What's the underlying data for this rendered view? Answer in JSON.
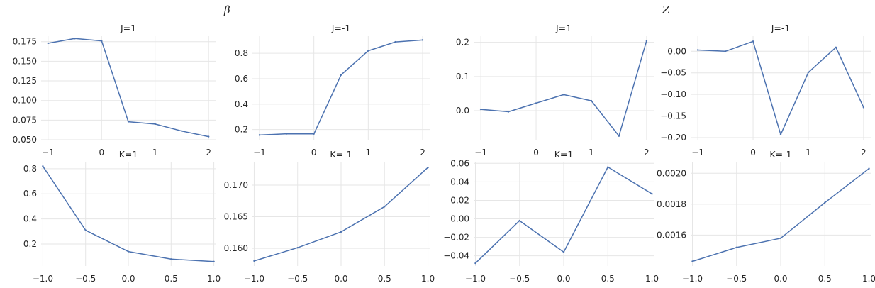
{
  "group_titles": {
    "left": "β",
    "right": "Z"
  },
  "chart_data": [
    {
      "type": "line",
      "title": "J=1",
      "xlabel": "",
      "ylabel": "",
      "x": [
        -1,
        -0.5,
        0,
        0.5,
        1,
        1.5,
        2
      ],
      "y": [
        0.173,
        0.179,
        0.176,
        0.073,
        0.07,
        0.061,
        0.054
      ],
      "xlim": [
        -1.13,
        2.13
      ],
      "ylim": [
        0.05,
        0.182
      ],
      "xticks": [
        -1,
        0,
        1,
        2
      ],
      "xtick_labels": [
        "−1",
        "0",
        "1",
        "2"
      ],
      "yticks": [
        0.05,
        0.075,
        0.1,
        0.125,
        0.15,
        0.175
      ],
      "ytick_labels": [
        "0.050",
        "0.075",
        "0.100",
        "0.125",
        "0.150",
        "0.175"
      ],
      "grid": true
    },
    {
      "type": "line",
      "title": "J=-1",
      "xlabel": "",
      "ylabel": "",
      "x": [
        -1,
        -0.5,
        0,
        0.5,
        1,
        1.5,
        2
      ],
      "y": [
        0.157,
        0.167,
        0.166,
        0.63,
        0.82,
        0.89,
        0.905
      ],
      "xlim": [
        -1.13,
        2.13
      ],
      "ylim": [
        0.12,
        0.935
      ],
      "xticks": [
        -1,
        0,
        1,
        2
      ],
      "xtick_labels": [
        "−1",
        "0",
        "1",
        "2"
      ],
      "yticks": [
        0.2,
        0.4,
        0.6,
        0.8
      ],
      "ytick_labels": [
        "0.2",
        "0.4",
        "0.6",
        "0.8"
      ],
      "grid": true
    },
    {
      "type": "line",
      "title": "J=1",
      "xlabel": "",
      "ylabel": "",
      "x": [
        -1,
        -0.5,
        0,
        0.5,
        1,
        1.5,
        2
      ],
      "y": [
        0.004,
        -0.003,
        0.022,
        0.047,
        0.029,
        -0.074,
        0.205
      ],
      "xlim": [
        -1.13,
        2.13
      ],
      "ylim": [
        -0.085,
        0.218
      ],
      "xticks": [
        -1,
        0,
        1,
        2
      ],
      "xtick_labels": [
        "−1",
        "0",
        "1",
        "2"
      ],
      "yticks": [
        0.0,
        0.1,
        0.2
      ],
      "ytick_labels": [
        "0.0",
        "0.1",
        "0.2"
      ],
      "grid": true
    },
    {
      "type": "line",
      "title": "J=-1",
      "xlabel": "",
      "ylabel": "",
      "x": [
        -1,
        -0.5,
        0,
        0.5,
        1,
        1.5,
        2
      ],
      "y": [
        0.003,
        0.0,
        0.023,
        -0.193,
        -0.049,
        0.009,
        -0.13
      ],
      "xlim": [
        -1.13,
        2.13
      ],
      "ylim": [
        -0.205,
        0.035
      ],
      "xticks": [
        -1,
        0,
        1,
        2
      ],
      "xtick_labels": [
        "−1",
        "0",
        "1",
        "2"
      ],
      "yticks": [
        -0.2,
        -0.15,
        -0.1,
        -0.05,
        0.0
      ],
      "ytick_labels": [
        "−0.20",
        "−0.15",
        "−0.10",
        "−0.05",
        "0.00"
      ],
      "grid": true
    },
    {
      "type": "line",
      "title": "K=1",
      "xlabel": "",
      "ylabel": "",
      "x": [
        -1,
        -0.5,
        0,
        0.5,
        1
      ],
      "y": [
        0.82,
        0.31,
        0.14,
        0.08,
        0.06
      ],
      "xlim": [
        -1.02,
        1.02
      ],
      "ylim": [
        0.025,
        0.85
      ],
      "xticks": [
        -1,
        -0.5,
        0,
        0.5,
        1
      ],
      "xtick_labels": [
        "−1.0",
        "−0.5",
        "0.0",
        "0.5",
        "1.0"
      ],
      "yticks": [
        0.2,
        0.4,
        0.6,
        0.8
      ],
      "ytick_labels": [
        "0.2",
        "0.4",
        "0.6",
        "0.8"
      ],
      "grid": true
    },
    {
      "type": "line",
      "title": "K=-1",
      "xlabel": "",
      "ylabel": "",
      "x": [
        -1,
        -0.5,
        0,
        0.5,
        1
      ],
      "y": [
        0.158,
        0.1601,
        0.1626,
        0.1666,
        0.1728
      ],
      "xlim": [
        -1.02,
        1.02
      ],
      "ylim": [
        0.1572,
        0.1736
      ],
      "xticks": [
        -1,
        -0.5,
        0,
        0.5,
        1
      ],
      "xtick_labels": [
        "−1.0",
        "−0.5",
        "0.0",
        "0.5",
        "1.0"
      ],
      "yticks": [
        0.16,
        0.165,
        0.17
      ],
      "ytick_labels": [
        "0.160",
        "0.165",
        "0.170"
      ],
      "grid": true
    },
    {
      "type": "line",
      "title": "K=1",
      "xlabel": "",
      "ylabel": "",
      "x": [
        -1,
        -0.5,
        0,
        0.5,
        1
      ],
      "y": [
        -0.048,
        -0.002,
        -0.036,
        0.056,
        0.027
      ],
      "xlim": [
        -1.02,
        1.02
      ],
      "ylim": [
        -0.051,
        0.061
      ],
      "xticks": [
        -1,
        -0.5,
        0,
        0.5,
        1
      ],
      "xtick_labels": [
        "−1.0",
        "−0.5",
        "0.0",
        "0.5",
        "1.0"
      ],
      "yticks": [
        -0.04,
        -0.02,
        0.0,
        0.02,
        0.04,
        0.06
      ],
      "ytick_labels": [
        "−0.04",
        "−0.02",
        "0.00",
        "0.02",
        "0.04",
        "0.06"
      ],
      "grid": true
    },
    {
      "type": "line",
      "title": "K=-1",
      "xlabel": "",
      "ylabel": "",
      "x": [
        -1,
        -0.5,
        0,
        0.5,
        1
      ],
      "y": [
        0.00143,
        0.00152,
        0.00158,
        0.00181,
        0.00203
      ],
      "xlim": [
        -1.02,
        1.02
      ],
      "ylim": [
        0.0014,
        0.00207
      ],
      "xticks": [
        -1,
        -0.5,
        0,
        0.5,
        1
      ],
      "xtick_labels": [
        "−1.0",
        "−0.5",
        "0.0",
        "0.5",
        "1.0"
      ],
      "yticks": [
        0.0016,
        0.0018,
        0.002
      ],
      "ytick_labels": [
        "0.0016",
        "0.0018",
        "0.0020"
      ],
      "grid": true
    }
  ]
}
